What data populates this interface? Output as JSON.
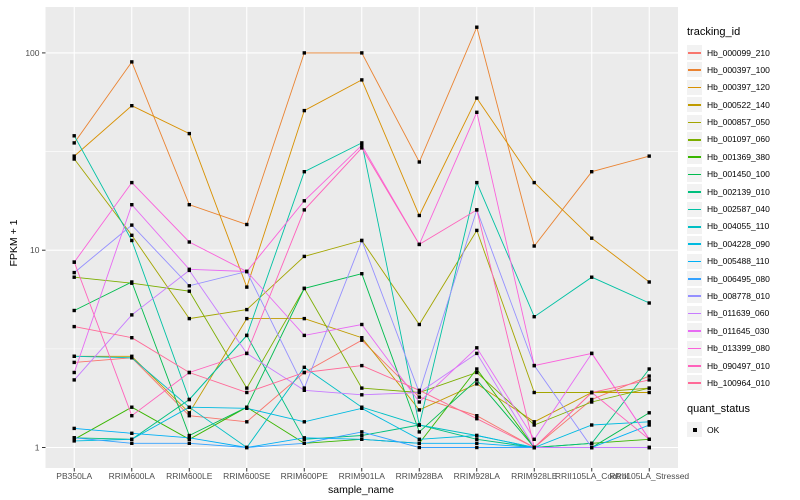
{
  "chart_data": {
    "type": "line",
    "title": "",
    "xlabel": "sample_name",
    "ylabel": "FPKM + 1",
    "y_scale": "log10",
    "y_ticks": [
      1,
      10,
      100
    ],
    "y_minor_ticks": [
      3.162,
      31.62
    ],
    "ylim": [
      0.78,
      170
    ],
    "grid": true,
    "legend_position": "right",
    "legend_title": "tracking_id",
    "quant_legend": {
      "title": "quant_status",
      "items": [
        "OK"
      ]
    },
    "marker": {
      "shape": "square",
      "color": "#000000",
      "label": "OK"
    },
    "colors": {
      "panel_bg": "#EBEBEB",
      "grid": "#FFFFFF",
      "axis_text": "#4D4D4D",
      "tick_mark": "#333333",
      "title_text": "#000000"
    },
    "categories": [
      "PB350LA",
      "RRIM600LA",
      "RRIM600LE",
      "RRIM600SE",
      "RRIM600PE",
      "RRIM901LA",
      "RRIM928BA",
      "RRIM928LA",
      "RRIM928LE",
      "RRII105LA_Control",
      "RRII105LA_Stressed"
    ],
    "series": [
      {
        "name": "Hb_000099_210",
        "color": "#F8766D",
        "values": [
          2.7,
          2.85,
          1.45,
          1.35,
          2.4,
          3.5,
          1.8,
          1.45,
          1.0,
          1.75,
          2.3
        ]
      },
      {
        "name": "Hb_000397_100",
        "color": "#EA8331",
        "values": [
          35,
          90,
          17,
          13.5,
          100,
          100,
          28,
          135,
          10.5,
          25,
          30
        ]
      },
      {
        "name": "Hb_000397_120",
        "color": "#D89000",
        "values": [
          30,
          54,
          39,
          6.5,
          51,
          73,
          15,
          59,
          22,
          11.5,
          6.9
        ]
      },
      {
        "name": "Hb_000522_140",
        "color": "#C09B00",
        "values": [
          2.9,
          2.9,
          1.5,
          4.5,
          4.5,
          3.6,
          1.55,
          2.1,
          1.35,
          1.9,
          1.9
        ]
      },
      {
        "name": "Hb_000857_050",
        "color": "#A3A500",
        "values": [
          29,
          11.9,
          4.5,
          5.0,
          9.3,
          11.2,
          4.2,
          12.6,
          1.9,
          1.9,
          2.0
        ]
      },
      {
        "name": "Hb_001097_060",
        "color": "#7CAE00",
        "values": [
          7.3,
          6.8,
          6.2,
          2.0,
          6.4,
          2.0,
          1.9,
          2.4,
          1.3,
          1.7,
          2.0
        ]
      },
      {
        "name": "Hb_001369_380",
        "color": "#39B600",
        "values": [
          1.1,
          1.6,
          1.1,
          1.6,
          1.05,
          1.1,
          1.05,
          2.5,
          1.0,
          1.05,
          1.1
        ]
      },
      {
        "name": "Hb_001450_100",
        "color": "#00BB4E",
        "values": [
          4.95,
          6.9,
          1.15,
          1.6,
          6.4,
          7.6,
          1.2,
          2.2,
          1.0,
          1.0,
          1.5
        ]
      },
      {
        "name": "Hb_002139_010",
        "color": "#00BF7D",
        "values": [
          1.12,
          1.1,
          1.75,
          3.7,
          1.1,
          1.15,
          1.3,
          1.1,
          1.0,
          1.05,
          2.5
        ]
      },
      {
        "name": "Hb_002587_040",
        "color": "#00C1A3",
        "values": [
          38,
          11.2,
          1.75,
          3.7,
          25,
          35,
          1.3,
          22,
          4.6,
          7.3,
          5.4
        ]
      },
      {
        "name": "Hb_004055_110",
        "color": "#00BFC4",
        "values": [
          2.9,
          2.85,
          1.6,
          1.0,
          2.55,
          1.6,
          1.3,
          1.15,
          1.0,
          1.0,
          1.0
        ]
      },
      {
        "name": "Hb_004228_090",
        "color": "#00BAE0",
        "values": [
          1.08,
          1.1,
          1.6,
          1.58,
          1.35,
          1.58,
          1.1,
          1.15,
          1.0,
          1.3,
          1.35
        ]
      },
      {
        "name": "Hb_005488_110",
        "color": "#00B0F6",
        "values": [
          1.25,
          1.18,
          1.12,
          1.0,
          1.12,
          1.1,
          1.05,
          1.05,
          1.0,
          1.0,
          1.3
        ]
      },
      {
        "name": "Hb_006495_080",
        "color": "#35A2FF",
        "values": [
          1.12,
          1.05,
          1.05,
          1.0,
          1.05,
          1.2,
          1.0,
          1.0,
          1.0,
          1.0,
          1.0
        ]
      },
      {
        "name": "Hb_008778_010",
        "color": "#9590FF",
        "values": [
          7.7,
          13.4,
          6.6,
          7.8,
          2.0,
          11.2,
          1.9,
          16,
          2.6,
          1.0,
          1.0
        ]
      },
      {
        "name": "Hb_011639_060",
        "color": "#C77CFF",
        "values": [
          2.2,
          4.7,
          7.9,
          3.0,
          1.95,
          1.85,
          1.9,
          3.0,
          1.0,
          1.0,
          1.0
        ]
      },
      {
        "name": "Hb_011645_030",
        "color": "#E76BF3",
        "values": [
          2.4,
          17,
          8.0,
          7.8,
          3.7,
          4.2,
          1.7,
          3.2,
          1.1,
          3.0,
          1.1
        ]
      },
      {
        "name": "Hb_013399_080",
        "color": "#FA62DB",
        "values": [
          8.7,
          22,
          11,
          7.8,
          17.8,
          34,
          10.7,
          50,
          2.6,
          3.0,
          1.1
        ]
      },
      {
        "name": "Hb_090497_010",
        "color": "#FF62BC",
        "values": [
          8.7,
          1.45,
          2.4,
          3.0,
          16,
          33,
          10.7,
          16,
          1.0,
          1.9,
          1.1
        ]
      },
      {
        "name": "Hb_100964_010",
        "color": "#FF6A98",
        "values": [
          4.1,
          3.6,
          2.4,
          1.9,
          2.4,
          2.6,
          1.95,
          1.4,
          1.0,
          1.9,
          2.2
        ]
      }
    ]
  }
}
